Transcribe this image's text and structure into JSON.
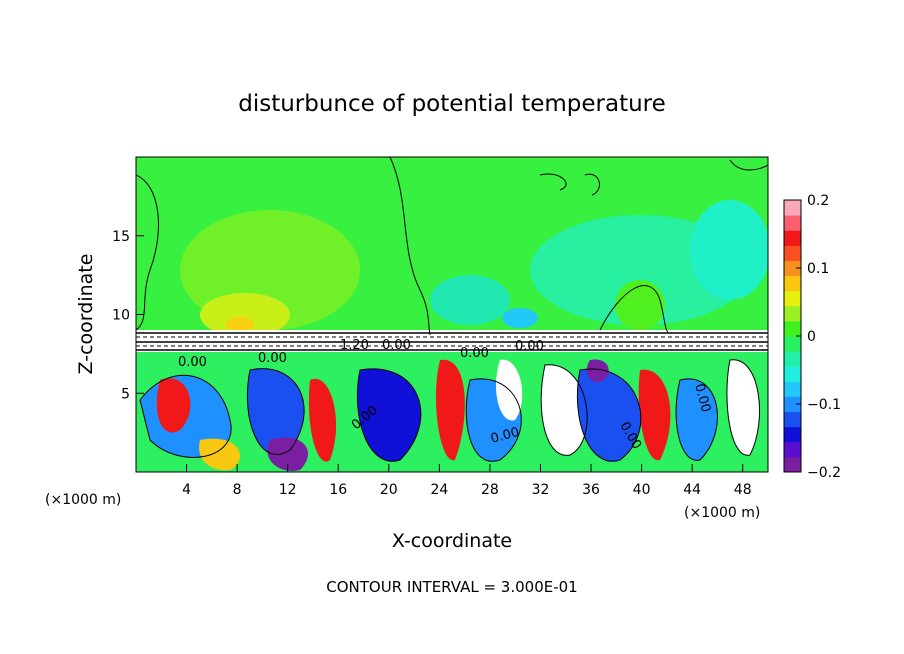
{
  "chart_data": {
    "type": "heatmap",
    "title": "disturbunce of potential temperature",
    "xlabel": "X-coordinate",
    "ylabel": "Z-coordinate",
    "x_unit": "(×1000 m)",
    "z_unit": "(×1000 m)",
    "xlim": [
      0,
      50
    ],
    "ylim": [
      0,
      20
    ],
    "x_ticks": [
      4,
      8,
      12,
      16,
      20,
      24,
      28,
      32,
      36,
      40,
      44,
      48
    ],
    "y_ticks": [
      5,
      10,
      15
    ],
    "colorbar": {
      "range": [
        -0.2,
        0.2
      ],
      "tick_labels": [
        "0.2",
        "0.1",
        "0",
        "−0.1",
        "−0.2"
      ],
      "tick_values": [
        0.2,
        0.1,
        0,
        -0.1,
        -0.2
      ],
      "colors": [
        "#7b1fa2",
        "#5a0fd0",
        "#1010d8",
        "#1a50f0",
        "#1e90ff",
        "#22c8f8",
        "#20f0e0",
        "#20f0a8",
        "#28f060",
        "#40f020",
        "#9af020",
        "#e8f010",
        "#f8c810",
        "#f89020",
        "#f85020",
        "#f01818",
        "#f86070",
        "#f8a8b8"
      ]
    },
    "contour_labels": [
      "0.00",
      "1.20",
      "0.00",
      "0.00",
      "0.00",
      "0.00",
      "0.00",
      "0.00",
      "0.00",
      "0.00"
    ],
    "footer": "CONTOUR INTERVAL = 3.000E-01"
  }
}
